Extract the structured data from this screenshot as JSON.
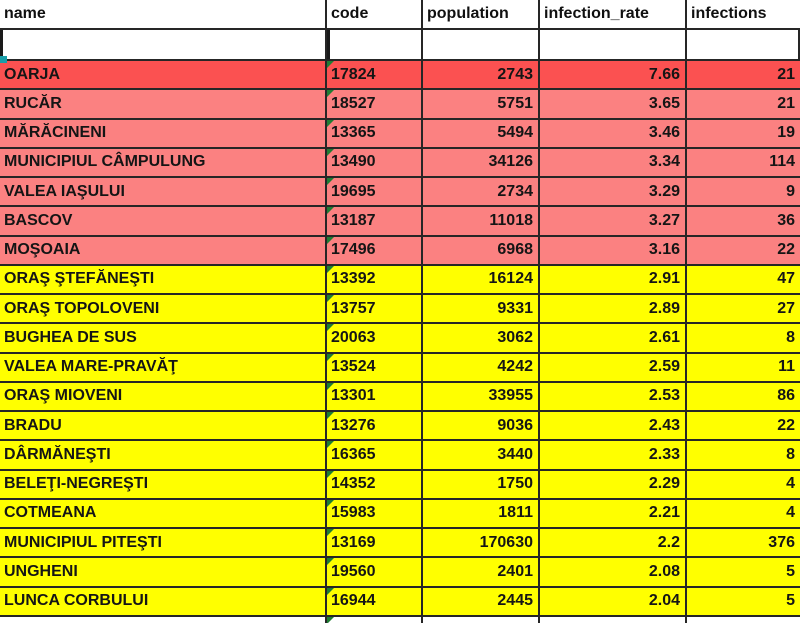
{
  "table": {
    "columns": [
      {
        "key": "name",
        "label": "name"
      },
      {
        "key": "code",
        "label": "code"
      },
      {
        "key": "population",
        "label": "population"
      },
      {
        "key": "infection_rate",
        "label": "infection_rate"
      },
      {
        "key": "infections",
        "label": "infections"
      }
    ],
    "colors": {
      "red": "#fb5151",
      "pink": "#fb8181",
      "yellow": "#ffff00",
      "white": "#ffffff",
      "border": "#262626",
      "triangle_green": "#1e7d33",
      "fill_handle_teal": "#189ea8"
    },
    "rows": [
      {
        "name": "OARJA",
        "code": "17824",
        "population": "2743",
        "infection_rate": "7.66",
        "infections": "21",
        "band": "red"
      },
      {
        "name": "RUCĂR",
        "code": "18527",
        "population": "5751",
        "infection_rate": "3.65",
        "infections": "21",
        "band": "pink"
      },
      {
        "name": "MĂRĂCINENI",
        "code": "13365",
        "population": "5494",
        "infection_rate": "3.46",
        "infections": "19",
        "band": "pink"
      },
      {
        "name": "MUNICIPIUL CÂMPULUNG",
        "code": "13490",
        "population": "34126",
        "infection_rate": "3.34",
        "infections": "114",
        "band": "pink"
      },
      {
        "name": "VALEA IAŞULUI",
        "code": "19695",
        "population": "2734",
        "infection_rate": "3.29",
        "infections": "9",
        "band": "pink"
      },
      {
        "name": "BASCOV",
        "code": "13187",
        "population": "11018",
        "infection_rate": "3.27",
        "infections": "36",
        "band": "pink"
      },
      {
        "name": "MOŞOAIA",
        "code": "17496",
        "population": "6968",
        "infection_rate": "3.16",
        "infections": "22",
        "band": "pink"
      },
      {
        "name": "ORAŞ ŞTEFĂNEŞTI",
        "code": "13392",
        "population": "16124",
        "infection_rate": "2.91",
        "infections": "47",
        "band": "yellow"
      },
      {
        "name": "ORAŞ TOPOLOVENI",
        "code": "13757",
        "population": "9331",
        "infection_rate": "2.89",
        "infections": "27",
        "band": "yellow"
      },
      {
        "name": "BUGHEA DE SUS",
        "code": "20063",
        "population": "3062",
        "infection_rate": "2.61",
        "infections": "8",
        "band": "yellow"
      },
      {
        "name": "VALEA MARE-PRAVĂŢ",
        "code": "13524",
        "population": "4242",
        "infection_rate": "2.59",
        "infections": "11",
        "band": "yellow"
      },
      {
        "name": "ORAŞ MIOVENI",
        "code": "13301",
        "population": "33955",
        "infection_rate": "2.53",
        "infections": "86",
        "band": "yellow"
      },
      {
        "name": "BRADU",
        "code": "13276",
        "population": "9036",
        "infection_rate": "2.43",
        "infections": "22",
        "band": "yellow"
      },
      {
        "name": "DÂRMĂNEŞTI",
        "code": "16365",
        "population": "3440",
        "infection_rate": "2.33",
        "infections": "8",
        "band": "yellow"
      },
      {
        "name": "BELEŢI-NEGREŞTI",
        "code": "14352",
        "population": "1750",
        "infection_rate": "2.29",
        "infections": "4",
        "band": "yellow"
      },
      {
        "name": "COTMEANA",
        "code": "15983",
        "population": "1811",
        "infection_rate": "2.21",
        "infections": "4",
        "band": "yellow"
      },
      {
        "name": "MUNICIPIUL PITEŞTI",
        "code": "13169",
        "population": "170630",
        "infection_rate": "2.2",
        "infections": "376",
        "band": "yellow"
      },
      {
        "name": "UNGHENI",
        "code": "19560",
        "population": "2401",
        "infection_rate": "2.08",
        "infections": "5",
        "band": "yellow"
      },
      {
        "name": "LUNCA CORBULUI",
        "code": "16944",
        "population": "2445",
        "infection_rate": "2.04",
        "infections": "5",
        "band": "yellow"
      }
    ],
    "empty_row": {
      "present": true
    },
    "partial_row": {
      "present": true,
      "band": "white",
      "has_triangle": true
    }
  }
}
